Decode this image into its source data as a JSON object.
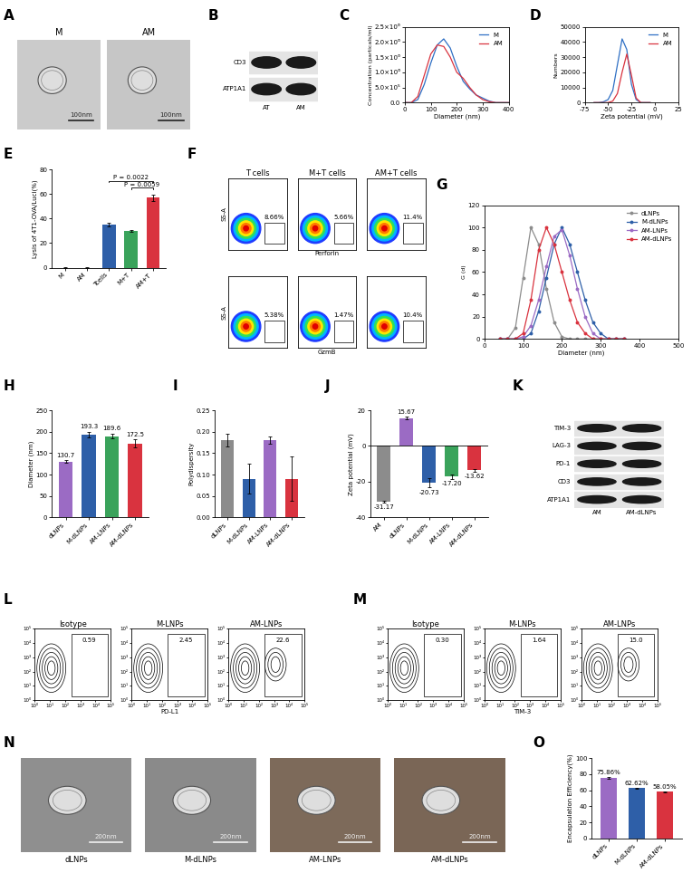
{
  "chart_data": [
    {
      "label": "A",
      "type": "image",
      "images": [
        {
          "title": "M",
          "scale_bar": "100nm"
        },
        {
          "title": "AM",
          "scale_bar": "100nm"
        }
      ]
    },
    {
      "label": "B",
      "type": "blot",
      "rows": [
        "CD3",
        "ATP1A1"
      ],
      "lanes": [
        "AT",
        "AM"
      ]
    },
    {
      "label": "C",
      "type": "line",
      "x": [
        0,
        25,
        50,
        75,
        100,
        125,
        150,
        175,
        200,
        225,
        250,
        275,
        300,
        325,
        350,
        375,
        400
      ],
      "series": [
        {
          "name": "M",
          "color": "#2e6fc4",
          "values": [
            0,
            0,
            100000,
            600000,
            1300000,
            1900000,
            2100000,
            1800000,
            1200000,
            700000,
            450000,
            250000,
            150000,
            50000,
            0,
            0,
            0
          ]
        },
        {
          "name": "AM",
          "color": "#d9333f",
          "values": [
            0,
            0,
            200000,
            900000,
            1600000,
            1900000,
            1850000,
            1500000,
            1000000,
            800000,
            500000,
            250000,
            100000,
            30000,
            0,
            0,
            0
          ]
        }
      ],
      "x_label": "Diameter (nm)",
      "y_label": "Concentration (particals/ml)",
      "xlim": [
        0,
        400
      ],
      "xticks": [
        0,
        100,
        200,
        300,
        400
      ],
      "ylim": [
        0,
        2500000
      ],
      "yticks": [
        {
          "value": 0,
          "label": "0.0"
        },
        {
          "value": 500000,
          "label": "5.0×10⁵"
        },
        {
          "value": 1000000,
          "label": "1.0×10⁶"
        },
        {
          "value": 1500000,
          "label": "1.5×10⁶"
        },
        {
          "value": 2000000,
          "label": "2.0×10⁶"
        },
        {
          "value": 2500000,
          "label": "2.5×10⁶"
        }
      ],
      "legend": "upper right"
    },
    {
      "label": "D",
      "type": "line",
      "x": [
        -65,
        -60,
        -55,
        -50,
        -45,
        -40,
        -35,
        -30,
        -25,
        -20,
        -15,
        -10,
        -5
      ],
      "series": [
        {
          "name": "M",
          "color": "#2e6fc4",
          "values": [
            0,
            0,
            500,
            2000,
            8000,
            25000,
            42000,
            35000,
            12000,
            2000,
            0,
            0,
            0
          ]
        },
        {
          "name": "AM",
          "color": "#d9333f",
          "values": [
            0,
            0,
            0,
            0,
            1000,
            6000,
            20000,
            32000,
            18000,
            3000,
            0,
            0,
            0
          ]
        }
      ],
      "x_label": "Zeta potential (mV)",
      "y_label": "Numbers",
      "xlim": [
        -75,
        25
      ],
      "xticks": [
        -75,
        -50,
        -25,
        0,
        25
      ],
      "ylim": [
        0,
        50000
      ],
      "yticks": [
        0,
        10000,
        20000,
        30000,
        40000,
        50000
      ],
      "legend": "upper right"
    },
    {
      "label": "E",
      "type": "bar",
      "categories": [
        "M",
        "AM",
        "Tcells",
        "M+T",
        "AM+T"
      ],
      "values": [
        0,
        0,
        35,
        30,
        57
      ],
      "errors": [
        0.3,
        0.3,
        1.2,
        0.8,
        2.5
      ],
      "colors": [
        "#9e9e9e",
        "#9e9e9e",
        "#2e5fa8",
        "#3aa35b",
        "#d9333f"
      ],
      "y_label": "Lysis of 4T1-OVA/Luci(%)",
      "ylim": [
        0,
        80
      ],
      "yticks": [
        0,
        20,
        40,
        60,
        80
      ],
      "annotations": [
        {
          "text": "P = 0.0022",
          "from": "Tcells",
          "to": "AM+T"
        },
        {
          "text": "P = 0.0059",
          "from": "M+T",
          "to": "AM+T"
        }
      ]
    },
    {
      "label": "F",
      "type": "flow",
      "columns": [
        "T cells",
        "M+T cells",
        "AM+T cells"
      ],
      "y_label": "SS-A",
      "tick_labels": false,
      "rows": [
        {
          "x_label": "Perforin",
          "gates": [
            "8.66%",
            "5.66%",
            "11.4%"
          ]
        },
        {
          "x_label": "GzmB",
          "gates": [
            "5.38%",
            "1.47%",
            "10.4%"
          ]
        }
      ]
    },
    {
      "label": "G",
      "type": "line",
      "marker": "circle",
      "x": [
        40,
        60,
        80,
        100,
        120,
        140,
        160,
        180,
        200,
        220,
        240,
        260,
        280,
        300,
        320,
        340,
        360
      ],
      "series": [
        {
          "name": "dLNPs",
          "color": "#8c8c8c",
          "values": [
            0,
            0,
            10,
            55,
            100,
            85,
            45,
            15,
            2,
            0,
            0,
            0,
            0,
            0,
            0,
            0,
            0
          ]
        },
        {
          "name": "M-dLNPs",
          "color": "#2e5fa8",
          "values": [
            0,
            0,
            0,
            0,
            5,
            25,
            55,
            85,
            100,
            85,
            60,
            35,
            15,
            5,
            0,
            0,
            0
          ]
        },
        {
          "name": "AM-LNPs",
          "color": "#9b6bc4",
          "values": [
            0,
            0,
            0,
            2,
            12,
            35,
            65,
            92,
            98,
            75,
            45,
            20,
            5,
            0,
            0,
            0,
            0
          ]
        },
        {
          "name": "AM-dLNPs",
          "color": "#d9333f",
          "values": [
            0,
            0,
            0,
            5,
            35,
            80,
            100,
            85,
            60,
            35,
            15,
            5,
            0,
            0,
            0,
            0,
            0
          ]
        }
      ],
      "x_label": "Diameter (nm)",
      "y_label": "G (d)",
      "xlim": [
        0,
        500
      ],
      "xticks": [
        0,
        100,
        200,
        300,
        400,
        500
      ],
      "ylim": [
        0,
        120
      ],
      "yticks": [
        0,
        20,
        40,
        60,
        80,
        100,
        120
      ],
      "legend": "upper right"
    },
    {
      "label": "H",
      "type": "bar",
      "categories": [
        "dLNPs",
        "M-dLNPs",
        "AM-LNPs",
        "AM-dLNPs"
      ],
      "values": [
        130.7,
        193.3,
        189.6,
        172.5
      ],
      "errors": [
        3,
        7,
        6,
        10
      ],
      "colors": [
        "#9b6bc4",
        "#2e5fa8",
        "#3aa35b",
        "#d9333f"
      ],
      "data_labels": true,
      "y_label": "Diameter (nm)",
      "ylim": [
        0,
        250
      ],
      "yticks": [
        0,
        50,
        100,
        150,
        200,
        250
      ]
    },
    {
      "label": "I",
      "type": "bar",
      "categories": [
        "dLNPs",
        "M-dLNPs",
        "AM-LNPs",
        "AM-dLNPs"
      ],
      "values": [
        0.18,
        0.09,
        0.18,
        0.09
      ],
      "errors": [
        0.015,
        0.035,
        0.008,
        0.052
      ],
      "colors": [
        "#8c8c8c",
        "#2e5fa8",
        "#9b6bc4",
        "#d9333f"
      ],
      "y_label": "Polydispersity",
      "ylim": [
        0,
        0.25
      ],
      "yticks": [
        {
          "value": 0,
          "label": "0.00"
        },
        {
          "value": 0.05,
          "label": "0.05"
        },
        {
          "value": 0.1,
          "label": "0.10"
        },
        {
          "value": 0.15,
          "label": "0.15"
        },
        {
          "value": 0.2,
          "label": "0.20"
        },
        {
          "value": 0.25,
          "label": "0.25"
        }
      ]
    },
    {
      "label": "J",
      "type": "bar",
      "categories": [
        "AM",
        "dLNPs",
        "M-dLNPs",
        "AM-LNPs",
        "AM-dLNPs"
      ],
      "values": [
        -31.17,
        15.67,
        -20.73,
        -17.2,
        -13.62
      ],
      "value_labels": [
        "-31.17",
        "15.67",
        "-20.73",
        "-17.20",
        "-13.62"
      ],
      "errors": [
        0.5,
        0.8,
        2.5,
        1.2,
        0.8
      ],
      "colors": [
        "#8c8c8c",
        "#9b6bc4",
        "#2e5fa8",
        "#3aa35b",
        "#d9333f"
      ],
      "data_labels": true,
      "y_label": "Zeta potential (mV)",
      "ylim": [
        -40,
        20
      ],
      "yticks": [
        -40,
        -20,
        0,
        20
      ]
    },
    {
      "label": "K",
      "type": "blot",
      "rows": [
        "TIM-3",
        "LAG-3",
        "PD-1",
        "CD3",
        "ATP1A1"
      ],
      "lanes": [
        "AM",
        "AM-dLNPs"
      ]
    },
    {
      "label": "L",
      "type": "contour",
      "columns": [
        "Isotype",
        "M-LNPs",
        "AM-LNPs"
      ],
      "x_label": "PD-L1",
      "gates": [
        "0.59",
        "2.45",
        "22.6"
      ],
      "log": true,
      "xlim": [
        1,
        100000
      ],
      "ylim": [
        1,
        100000
      ],
      "xticks": [
        {
          "value": 1,
          "label": "10⁰"
        },
        {
          "value": 10,
          "label": "10¹"
        },
        {
          "value": 100,
          "label": "10²"
        },
        {
          "value": 1000,
          "label": "10³"
        },
        {
          "value": 10000,
          "label": "10⁴"
        },
        {
          "value": 100000,
          "label": "10⁵"
        }
      ],
      "yticks": [
        {
          "value": 1,
          "label": "10⁰"
        },
        {
          "value": 10,
          "label": "10¹"
        },
        {
          "value": 100,
          "label": "10²"
        },
        {
          "value": 1000,
          "label": "10³"
        },
        {
          "value": 10000,
          "label": "10⁴"
        },
        {
          "value": 100000,
          "label": "10⁵"
        }
      ]
    },
    {
      "label": "M",
      "type": "contour",
      "columns": [
        "Isotype",
        "M-LNPs",
        "AM-LNPs"
      ],
      "x_label": "TIM-3",
      "gates": [
        "0.30",
        "1.64",
        "15.0"
      ],
      "log": true,
      "xlim": [
        1,
        100000
      ],
      "ylim": [
        1,
        100000
      ],
      "xticks": [
        {
          "value": 1,
          "label": "10⁰"
        },
        {
          "value": 10,
          "label": "10¹"
        },
        {
          "value": 100,
          "label": "10²"
        },
        {
          "value": 1000,
          "label": "10³"
        },
        {
          "value": 10000,
          "label": "10⁴"
        },
        {
          "value": 100000,
          "label": "10⁵"
        }
      ],
      "yticks": [
        {
          "value": 1,
          "label": "10⁰"
        },
        {
          "value": 10,
          "label": "10¹"
        },
        {
          "value": 100,
          "label": "10²"
        },
        {
          "value": 1000,
          "label": "10³"
        },
        {
          "value": 10000,
          "label": "10⁴"
        },
        {
          "value": 100000,
          "label": "10⁵"
        }
      ]
    },
    {
      "label": "N",
      "type": "image",
      "images": [
        {
          "title": "dLNPs",
          "scale_bar": "200nm"
        },
        {
          "title": "M-dLNPs",
          "scale_bar": "200nm"
        },
        {
          "title": "AM-LNPs",
          "scale_bar": "200nm"
        },
        {
          "title": "AM-dLNPs",
          "scale_bar": "200nm"
        }
      ]
    },
    {
      "label": "O",
      "type": "bar",
      "categories": [
        "dLNPs",
        "M-dLNPs",
        "AM-dLNPs"
      ],
      "values": [
        75.86,
        62.62,
        58.05
      ],
      "value_labels": [
        "75.86%",
        "62.62%",
        "58.05%"
      ],
      "errors": [
        1.0,
        0.8,
        0.8
      ],
      "colors": [
        "#9b6bc4",
        "#2e5fa8",
        "#d9333f"
      ],
      "data_labels": true,
      "y_label": "Encapsulation Efficiency(%)",
      "ylim": [
        0,
        100
      ],
      "yticks": [
        0,
        20,
        40,
        60,
        80,
        100
      ]
    }
  ]
}
